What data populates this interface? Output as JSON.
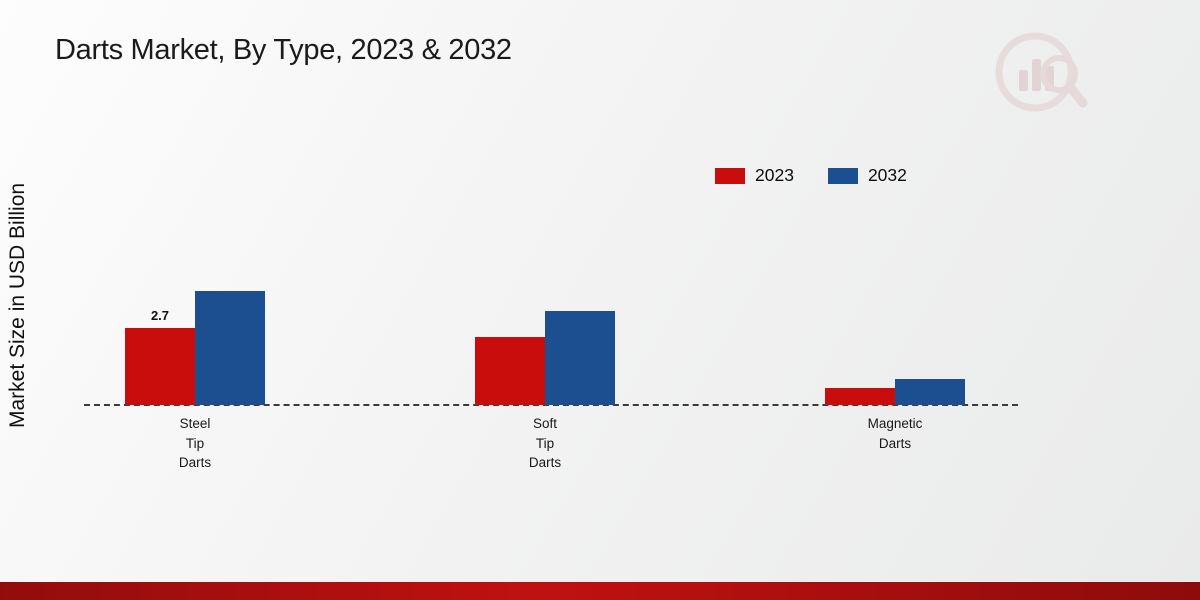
{
  "page": {
    "title": "Darts Market, By Type, 2023 & 2032",
    "ylabel": "Market Size in USD Billion"
  },
  "chart_data": {
    "type": "bar",
    "title": "Darts Market, By Type, 2023 & 2032",
    "xlabel": "",
    "ylabel": "Market Size in USD Billion",
    "categories": [
      "Steel Tip Darts",
      "Soft Tip Darts",
      "Magnetic Darts"
    ],
    "category_label_lines": [
      [
        "Steel",
        "Tip",
        "Darts"
      ],
      [
        "Soft",
        "Tip",
        "Darts"
      ],
      [
        "Magnetic",
        "Darts"
      ]
    ],
    "series": [
      {
        "name": "2023",
        "color": "#c90d0d",
        "values": [
          2.7,
          2.4,
          0.6
        ]
      },
      {
        "name": "2032",
        "color": "#1b4f8f",
        "values": [
          4.0,
          3.3,
          0.9
        ]
      }
    ],
    "data_labels": [
      {
        "series": "2023",
        "category": "Steel Tip Darts",
        "text": "2.7"
      }
    ],
    "ylim": [
      0,
      4.5
    ],
    "grid": false,
    "legend_position": "top-right",
    "baseline_style": "dashed"
  },
  "branding": {
    "footer_color_left": "#930c0c",
    "footer_color_mid": "#c01111",
    "logo_icon": "bar-chart-magnifier-watermark"
  }
}
